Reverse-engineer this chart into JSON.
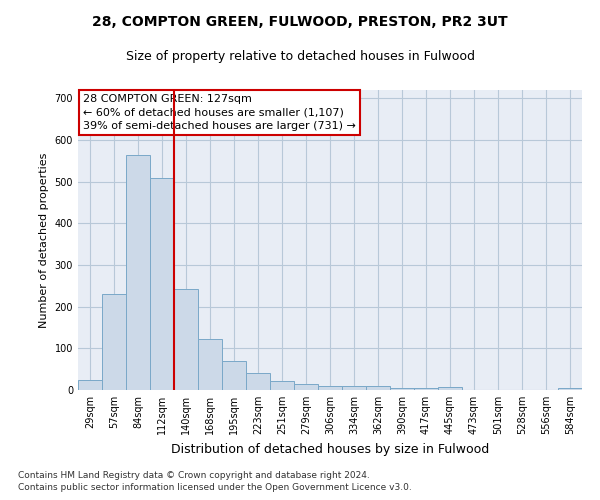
{
  "title1": "28, COMPTON GREEN, FULWOOD, PRESTON, PR2 3UT",
  "title2": "Size of property relative to detached houses in Fulwood",
  "xlabel": "Distribution of detached houses by size in Fulwood",
  "ylabel": "Number of detached properties",
  "footnote1": "Contains HM Land Registry data © Crown copyright and database right 2024.",
  "footnote2": "Contains public sector information licensed under the Open Government Licence v3.0.",
  "annotation_title": "28 COMPTON GREEN: 127sqm",
  "annotation_line1": "← 60% of detached houses are smaller (1,107)",
  "annotation_line2": "39% of semi-detached houses are larger (731) →",
  "bar_color": "#ccd9e8",
  "bar_edge_color": "#7aa8c8",
  "redline_color": "#cc0000",
  "background_color": "#ffffff",
  "plot_bg_color": "#e8edf5",
  "grid_color": "#b8c8d8",
  "categories": [
    "29sqm",
    "57sqm",
    "84sqm",
    "112sqm",
    "140sqm",
    "168sqm",
    "195sqm",
    "223sqm",
    "251sqm",
    "279sqm",
    "306sqm",
    "334sqm",
    "362sqm",
    "390sqm",
    "417sqm",
    "445sqm",
    "473sqm",
    "501sqm",
    "528sqm",
    "556sqm",
    "584sqm"
  ],
  "values": [
    25,
    230,
    565,
    510,
    243,
    123,
    70,
    40,
    22,
    14,
    10,
    10,
    10,
    5,
    5,
    7,
    0,
    0,
    0,
    0,
    5
  ],
  "ylim": [
    0,
    720
  ],
  "yticks": [
    0,
    100,
    200,
    300,
    400,
    500,
    600,
    700
  ],
  "redline_x": 3.5,
  "title1_fontsize": 10,
  "title2_fontsize": 9,
  "ylabel_fontsize": 8,
  "xlabel_fontsize": 9,
  "tick_fontsize": 7,
  "annot_fontsize": 8,
  "footnote_fontsize": 6.5
}
